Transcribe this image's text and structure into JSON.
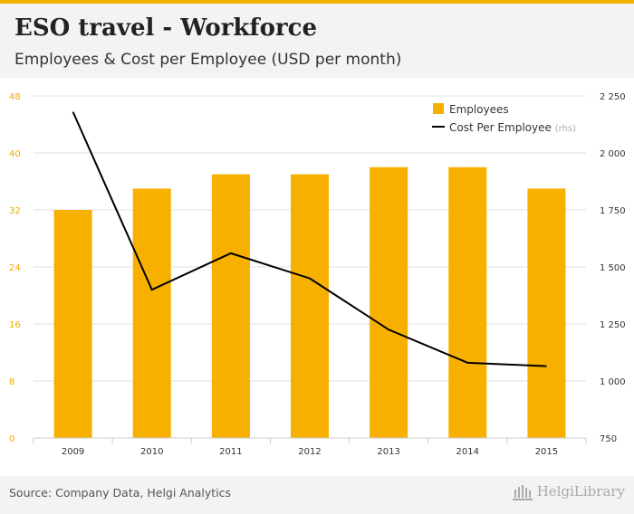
{
  "header": {
    "title": "ESO travel - Workforce",
    "subtitle": "Employees & Cost per Employee (USD per month)"
  },
  "footer": {
    "source": "Source: Company Data, Helgi Analytics",
    "brand": "HelgiLibrary"
  },
  "colors": {
    "bar": "#f7b000",
    "line": "#000000",
    "left_axis_text": "#f2a900",
    "right_axis_text": "#333333"
  },
  "chart_data": {
    "type": "bar",
    "categories": [
      "2009",
      "2010",
      "2011",
      "2012",
      "2013",
      "2014",
      "2015"
    ],
    "series": [
      {
        "name": "Employees",
        "type": "bar",
        "axis": "left",
        "values": [
          32,
          35,
          37,
          37,
          38,
          38,
          35
        ]
      },
      {
        "name": "Cost Per Employee",
        "type": "line",
        "axis": "right",
        "legend_suffix": "(rhs)",
        "values": [
          2180,
          1400,
          1560,
          1450,
          1225,
          1080,
          1065
        ]
      }
    ],
    "yleft": {
      "range": [
        0,
        48
      ],
      "ticks": [
        "0",
        "8",
        "16",
        "24",
        "32",
        "40",
        "48"
      ]
    },
    "yright": {
      "range": [
        750,
        2250
      ],
      "ticks": [
        "750",
        "1 000",
        "1 250",
        "1 500",
        "1 750",
        "2 000",
        "2 250"
      ]
    },
    "legend_position": "top-right"
  }
}
